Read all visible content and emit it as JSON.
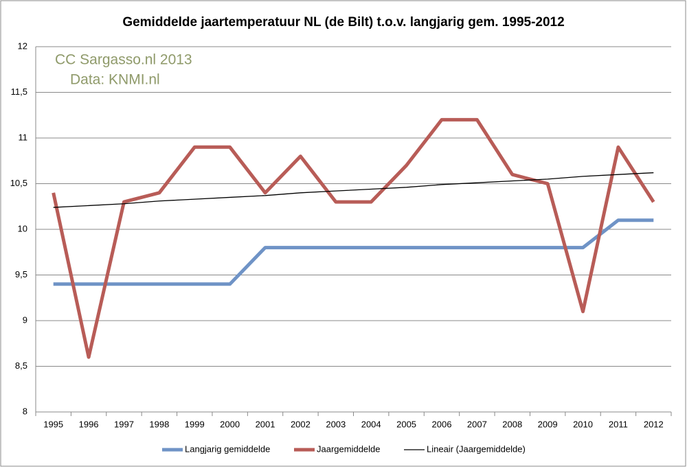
{
  "chart_data": {
    "type": "line",
    "title": "Gemiddelde jaartemperatuur NL (de Bilt) t.o.v. langjarig gem. 1995-2012",
    "annotations": [
      "CC Sargasso.nl 2013",
      "Data: KNMI.nl"
    ],
    "categories": [
      "1995",
      "1996",
      "1997",
      "1998",
      "1999",
      "2000",
      "2001",
      "2002",
      "2003",
      "2004",
      "2005",
      "2006",
      "2007",
      "2008",
      "2009",
      "2010",
      "2011",
      "2012"
    ],
    "series": [
      {
        "name": "Langjarig gemiddelde",
        "color": "#6f93c6",
        "values": [
          9.4,
          9.4,
          9.4,
          9.4,
          9.4,
          9.4,
          9.8,
          9.8,
          9.8,
          9.8,
          9.8,
          9.8,
          9.8,
          9.8,
          9.8,
          9.8,
          10.1,
          10.1
        ]
      },
      {
        "name": "Jaargemiddelde",
        "color": "#b85c57",
        "values": [
          10.4,
          8.6,
          10.3,
          10.4,
          10.9,
          10.9,
          10.4,
          10.8,
          10.3,
          10.3,
          10.7,
          11.2,
          11.2,
          10.6,
          10.5,
          9.1,
          10.9,
          10.3
        ]
      },
      {
        "name": "Lineair (Jaargemiddelde)",
        "color": "#000000",
        "values": [
          10.24,
          10.26,
          10.28,
          10.31,
          10.33,
          10.35,
          10.37,
          10.4,
          10.42,
          10.44,
          10.46,
          10.49,
          10.51,
          10.53,
          10.55,
          10.58,
          10.6,
          10.62
        ]
      }
    ],
    "ylim": [
      8,
      12
    ],
    "yticks": [
      8,
      {
        "value": 8.5,
        "label": "8,5"
      },
      9,
      {
        "value": 9.5,
        "label": "9,5"
      },
      10,
      {
        "value": 10.5,
        "label": "10,5"
      },
      11,
      {
        "value": 11.5,
        "label": "11,5"
      },
      12
    ],
    "grid": true,
    "legend": "bottom"
  }
}
